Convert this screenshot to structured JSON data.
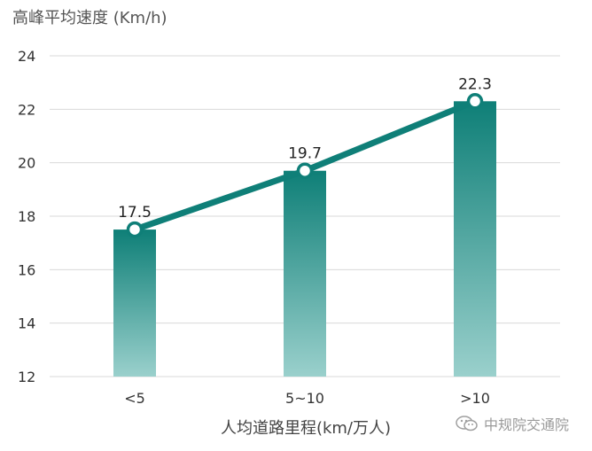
{
  "chart_data": {
    "type": "bar",
    "ylabel": "高峰平均速度 (Km/h)",
    "xlabel": "人均道路里程(km/万人)",
    "categories": [
      "<5",
      "5~10",
      ">10"
    ],
    "values": [
      17.5,
      19.7,
      22.3
    ],
    "data_labels": [
      "17.5",
      "19.7",
      "22.3"
    ],
    "ylim": [
      12,
      24
    ],
    "yticks": [
      12,
      14,
      16,
      18,
      20,
      22,
      24
    ],
    "grid": true,
    "overlay_line": true,
    "colors": {
      "bar_top": "#0e7f77",
      "bar_bottom": "#9ad0cc",
      "line": "#0f7f78",
      "grid": "#d9d9d9"
    }
  },
  "watermark": {
    "text": "中规院交通院",
    "icon": "wechat-icon"
  }
}
